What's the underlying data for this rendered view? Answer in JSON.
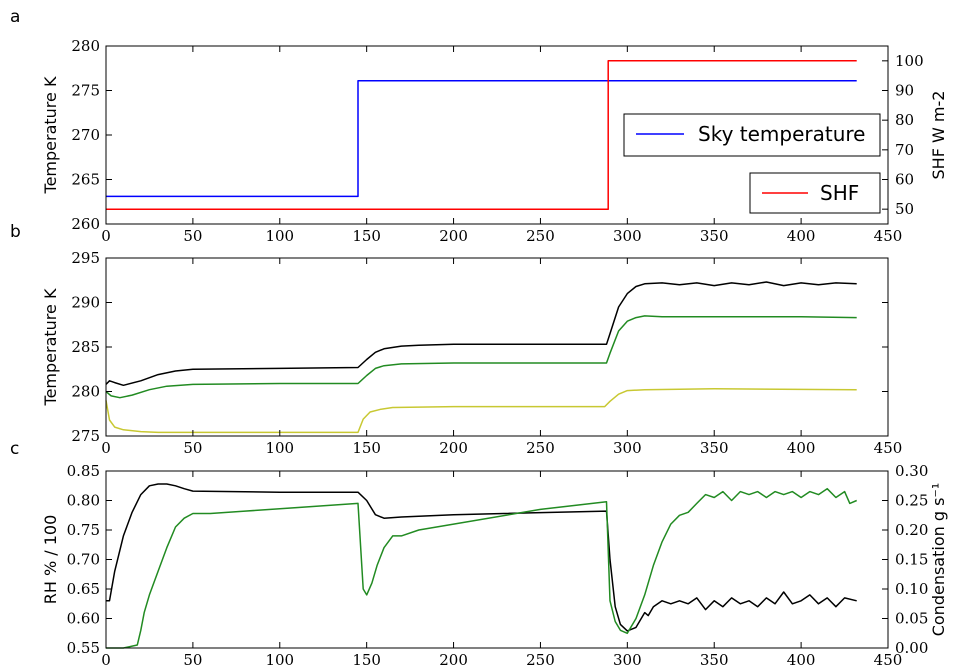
{
  "chart_data": [
    {
      "panel": "a",
      "type": "line",
      "xlim": [
        0,
        450
      ],
      "xticks": [
        0,
        50,
        100,
        150,
        200,
        250,
        300,
        350,
        400,
        450
      ],
      "ylabel": "Temperature K",
      "ylim": [
        260,
        280
      ],
      "yticks": [
        260,
        265,
        270,
        275,
        280
      ],
      "y2label": "SHF W m-2",
      "y2lim": [
        45,
        105
      ],
      "y2ticks": [
        50,
        60,
        70,
        80,
        90,
        100
      ],
      "series": [
        {
          "name": "Sky temperature",
          "color": "#0000ff",
          "axis": "left",
          "x": [
            0,
            145,
            145,
            432
          ],
          "y": [
            263.1,
            263.1,
            276.1,
            276.1
          ]
        },
        {
          "name": "SHF",
          "color": "#ff0000",
          "axis": "right",
          "x": [
            0,
            289,
            289,
            432
          ],
          "y": [
            50,
            50,
            100,
            100
          ]
        }
      ],
      "legend": [
        "top-right",
        "right"
      ]
    },
    {
      "panel": "b",
      "type": "line",
      "xlim": [
        0,
        450
      ],
      "xticks": [
        0,
        50,
        100,
        150,
        200,
        250,
        300,
        350,
        400,
        450
      ],
      "ylabel": "Temperature K",
      "ylim": [
        275,
        295
      ],
      "yticks": [
        275,
        280,
        285,
        290,
        295
      ],
      "series": [
        {
          "color": "#000000",
          "x": [
            0,
            2,
            5,
            10,
            20,
            30,
            40,
            50,
            100,
            145,
            150,
            155,
            160,
            170,
            180,
            200,
            288,
            290,
            295,
            300,
            305,
            310,
            320,
            330,
            340,
            350,
            360,
            370,
            380,
            390,
            400,
            410,
            420,
            432
          ],
          "y": [
            280.8,
            281.2,
            281.0,
            280.7,
            281.2,
            281.9,
            282.3,
            282.5,
            282.6,
            282.7,
            283.6,
            284.4,
            284.8,
            285.1,
            285.2,
            285.3,
            285.3,
            286.5,
            289.5,
            291.0,
            291.8,
            292.1,
            292.2,
            292.0,
            292.2,
            291.9,
            292.2,
            292.0,
            292.3,
            291.9,
            292.2,
            292.0,
            292.2,
            292.1
          ]
        },
        {
          "color": "#228b22",
          "x": [
            0,
            3,
            8,
            15,
            25,
            35,
            50,
            100,
            145,
            150,
            155,
            160,
            170,
            200,
            288,
            290,
            295,
            300,
            305,
            310,
            320,
            350,
            400,
            432
          ],
          "y": [
            280.0,
            279.5,
            279.3,
            279.6,
            280.2,
            280.6,
            280.8,
            280.9,
            280.9,
            281.8,
            282.6,
            282.9,
            283.1,
            283.2,
            283.2,
            284.3,
            286.8,
            287.9,
            288.3,
            288.5,
            288.4,
            288.4,
            288.4,
            288.3
          ]
        },
        {
          "color": "#c8c832",
          "x": [
            0,
            2,
            5,
            10,
            20,
            30,
            50,
            100,
            145,
            148,
            152,
            158,
            165,
            200,
            287,
            290,
            295,
            300,
            310,
            350,
            432
          ],
          "y": [
            279.0,
            276.8,
            276.0,
            275.7,
            275.5,
            275.4,
            275.4,
            275.4,
            275.4,
            276.9,
            277.7,
            278.0,
            278.2,
            278.3,
            278.3,
            278.9,
            279.7,
            280.1,
            280.2,
            280.3,
            280.2
          ]
        }
      ]
    },
    {
      "panel": "c",
      "type": "line",
      "xlim": [
        0,
        450
      ],
      "xticks": [
        0,
        50,
        100,
        150,
        200,
        250,
        300,
        350,
        400,
        450
      ],
      "ylabel": "RH % / 100",
      "ylim": [
        0.55,
        0.85
      ],
      "yticks": [
        0.55,
        0.6,
        0.65,
        0.7,
        0.75,
        0.8,
        0.85
      ],
      "y2label": "Condensation g s⁻¹",
      "y2lim": [
        0.0,
        0.3
      ],
      "y2ticks": [
        0.0,
        0.05,
        0.1,
        0.15,
        0.2,
        0.25,
        0.3
      ],
      "series": [
        {
          "color": "#000000",
          "axis": "left",
          "x": [
            0,
            2,
            5,
            10,
            15,
            20,
            25,
            30,
            35,
            40,
            45,
            50,
            100,
            145,
            150,
            155,
            160,
            170,
            200,
            288,
            290,
            293,
            296,
            300,
            305,
            310,
            312,
            315,
            320,
            325,
            330,
            335,
            340,
            345,
            350,
            355,
            360,
            365,
            370,
            375,
            380,
            385,
            390,
            395,
            400,
            405,
            410,
            415,
            420,
            425,
            432
          ],
          "y": [
            0.63,
            0.63,
            0.68,
            0.74,
            0.78,
            0.81,
            0.825,
            0.828,
            0.828,
            0.825,
            0.82,
            0.816,
            0.814,
            0.814,
            0.8,
            0.776,
            0.77,
            0.772,
            0.776,
            0.782,
            0.7,
            0.62,
            0.59,
            0.579,
            0.585,
            0.61,
            0.605,
            0.62,
            0.63,
            0.625,
            0.63,
            0.625,
            0.635,
            0.615,
            0.63,
            0.62,
            0.635,
            0.625,
            0.63,
            0.62,
            0.635,
            0.625,
            0.645,
            0.625,
            0.63,
            0.64,
            0.625,
            0.635,
            0.62,
            0.635,
            0.63
          ]
        },
        {
          "color": "#228b22",
          "axis": "right",
          "x": [
            0,
            10,
            18,
            20,
            22,
            25,
            30,
            35,
            40,
            45,
            50,
            60,
            80,
            100,
            120,
            145,
            148,
            150,
            153,
            156,
            160,
            165,
            170,
            180,
            200,
            250,
            288,
            290,
            293,
            296,
            300,
            305,
            310,
            315,
            320,
            325,
            330,
            335,
            340,
            345,
            350,
            355,
            360,
            365,
            370,
            375,
            380,
            385,
            390,
            395,
            400,
            405,
            410,
            415,
            420,
            425,
            428,
            432
          ],
          "y": [
            0.0,
            0.0,
            0.005,
            0.03,
            0.06,
            0.09,
            0.13,
            0.17,
            0.205,
            0.22,
            0.228,
            0.228,
            0.232,
            0.236,
            0.24,
            0.245,
            0.1,
            0.09,
            0.11,
            0.14,
            0.17,
            0.19,
            0.19,
            0.2,
            0.21,
            0.235,
            0.248,
            0.08,
            0.045,
            0.03,
            0.025,
            0.05,
            0.09,
            0.14,
            0.18,
            0.21,
            0.225,
            0.23,
            0.245,
            0.26,
            0.255,
            0.265,
            0.25,
            0.265,
            0.26,
            0.265,
            0.255,
            0.265,
            0.26,
            0.265,
            0.255,
            0.265,
            0.26,
            0.27,
            0.255,
            0.265,
            0.245,
            0.25
          ]
        }
      ]
    }
  ],
  "panel_letters": [
    "a",
    "b",
    "c"
  ],
  "legend": {
    "sky_label": "Sky temperature",
    "shf_label": "SHF"
  }
}
